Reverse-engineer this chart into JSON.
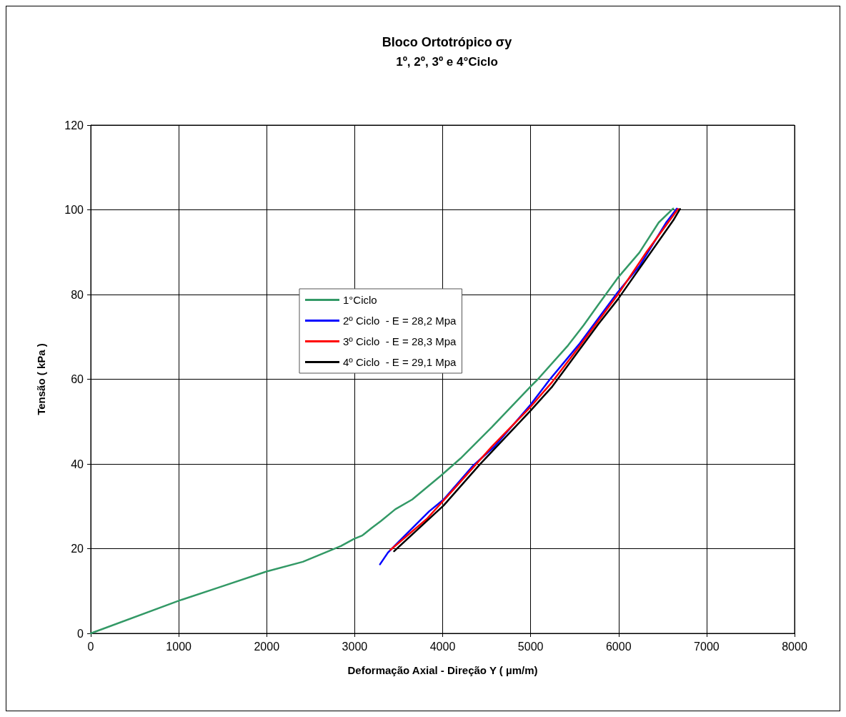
{
  "chart_data": {
    "type": "line",
    "title": "Bloco Ortotrópico σy",
    "subtitle": "1º, 2º, 3º e 4°Ciclo",
    "xlabel": "Deformação Axial - Direção Y ( µm/m)",
    "ylabel": "Tensão ( kPa )",
    "xlim": [
      0,
      8000
    ],
    "xticks": [
      0,
      1000,
      2000,
      3000,
      4000,
      5000,
      6000,
      7000,
      8000
    ],
    "ylim": [
      0,
      120
    ],
    "yticks": [
      0,
      20,
      40,
      60,
      80,
      100,
      120
    ],
    "grid": true,
    "legend": "left",
    "marker": "none",
    "line_style": "solid",
    "series": [
      {
        "name": "1°Ciclo",
        "color": "#339966",
        "x": [
          0,
          1000,
          1465,
          1997,
          2411,
          2843,
          2992,
          3086,
          3194,
          3297,
          3462,
          3654,
          3984,
          4203,
          4560,
          5000,
          5082,
          5426,
          5604,
          5769,
          5989,
          6236,
          6456,
          6621
        ],
        "values": [
          0,
          7.7,
          10.9,
          14.6,
          16.9,
          20.6,
          22.3,
          23.1,
          24.9,
          26.5,
          29.3,
          31.6,
          37.3,
          41.3,
          48.7,
          58.3,
          60,
          68,
          72.8,
          77.6,
          83.9,
          89.9,
          97,
          100.3
        ]
      },
      {
        "name": "2º Ciclo  - E = 28,2 Mpa",
        "color": "#0000ff",
        "x": [
          3288,
          3379,
          3571,
          3846,
          4011,
          4341,
          4588,
          5000,
          5220,
          5549,
          5989,
          6236,
          6538,
          6662
        ],
        "values": [
          16.3,
          19.1,
          23.1,
          28.8,
          31.6,
          39.5,
          44.1,
          54,
          60,
          68.2,
          80.5,
          86.7,
          96.9,
          100.3
        ]
      },
      {
        "name": "3º Ciclo  - E = 28,3 Mpa",
        "color": "#ff0000",
        "x": [
          3407,
          3819,
          4121,
          4560,
          5000,
          5247,
          5549,
          5989,
          6319,
          6676
        ],
        "values": [
          19.7,
          27,
          33.9,
          44.1,
          53.5,
          59.4,
          67.6,
          79.9,
          90.1,
          100.2
        ]
      },
      {
        "name": "4º Ciclo  - E = 29,1 Mpa",
        "color": "#000000",
        "x": [
          3448,
          4011,
          4423,
          5000,
          5247,
          5769,
          5989,
          6621,
          6698
        ],
        "values": [
          19.4,
          30.2,
          39.9,
          52.6,
          58.3,
          73,
          78.8,
          97.5,
          100.2
        ]
      }
    ]
  }
}
